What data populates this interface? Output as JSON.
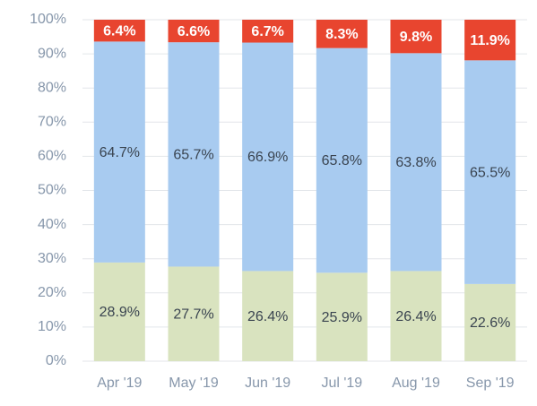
{
  "chart_data": {
    "type": "bar",
    "stacked": true,
    "categories": [
      "Apr '19",
      "May '19",
      "Jun '19",
      "Jul '19",
      "Aug '19",
      "Sep '19"
    ],
    "series": [
      {
        "color": "#d9e3bf",
        "values": [
          28.9,
          27.7,
          26.4,
          25.9,
          26.4,
          22.6
        ],
        "value_labels": [
          "28.9%",
          "27.7%",
          "26.4%",
          "25.9%",
          "26.4%",
          "22.6%"
        ],
        "label_color": "#3a4450"
      },
      {
        "color": "#a8cbf0",
        "values": [
          64.7,
          65.7,
          66.9,
          65.8,
          63.8,
          65.5
        ],
        "value_labels": [
          "64.7%",
          "65.7%",
          "66.9%",
          "65.8%",
          "63.8%",
          "65.5%"
        ],
        "label_color": "#3a4450"
      },
      {
        "color": "#e8452f",
        "values": [
          6.4,
          6.6,
          6.7,
          8.3,
          9.8,
          11.9
        ],
        "value_labels": [
          "6.4%",
          "6.6%",
          "6.7%",
          "8.3%",
          "9.8%",
          "11.9%"
        ],
        "label_color": "#ffffff"
      }
    ],
    "ylim": [
      0,
      100
    ],
    "yticks": [
      {
        "value": 0,
        "label": "0%"
      },
      {
        "value": 10,
        "label": "10%"
      },
      {
        "value": 20,
        "label": "20%"
      },
      {
        "value": 30,
        "label": "30%"
      },
      {
        "value": 40,
        "label": "40%"
      },
      {
        "value": 50,
        "label": "50%"
      },
      {
        "value": 60,
        "label": "60%"
      },
      {
        "value": 70,
        "label": "70%"
      },
      {
        "value": 80,
        "label": "80%"
      },
      {
        "value": 90,
        "label": "90%"
      },
      {
        "value": 100,
        "label": "100%"
      }
    ],
    "grid": true
  }
}
